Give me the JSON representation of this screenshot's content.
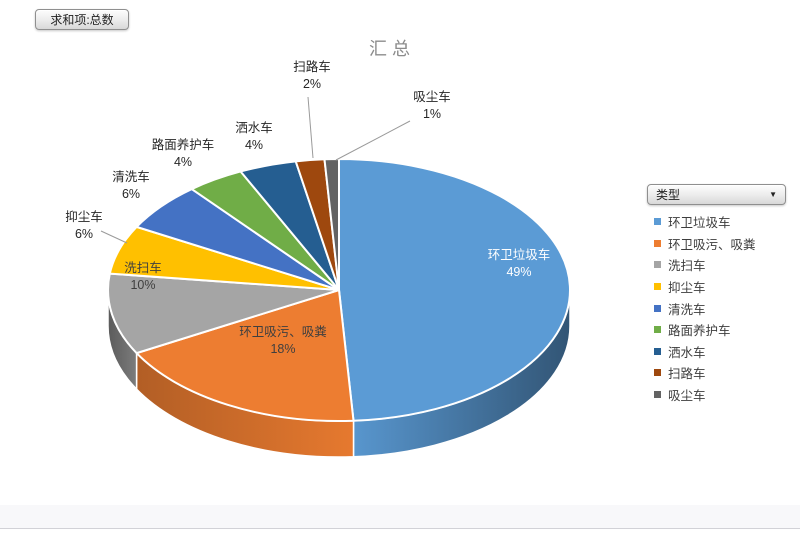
{
  "pivot": {
    "field_button": "求和项:总数"
  },
  "chart_data": {
    "type": "pie",
    "variant": "3d",
    "title": "汇总",
    "legend": {
      "field_button": "类型",
      "position": "right"
    },
    "categories": [
      "环卫垃圾车",
      "环卫吸污、吸粪",
      "洗扫车",
      "抑尘车",
      "清洗车",
      "路面养护车",
      "洒水车",
      "扫路车",
      "吸尘车"
    ],
    "values": [
      49,
      18,
      10,
      6,
      6,
      4,
      4,
      2,
      1
    ],
    "unit": "%",
    "colors": [
      "#5B9BD5",
      "#ED7D31",
      "#A5A5A5",
      "#FFC000",
      "#4472C4",
      "#70AD47",
      "#255E91",
      "#9E480E",
      "#636363"
    ],
    "start_angle_deg": -90,
    "direction": "clockwise",
    "data_labels": "category_and_percent"
  }
}
